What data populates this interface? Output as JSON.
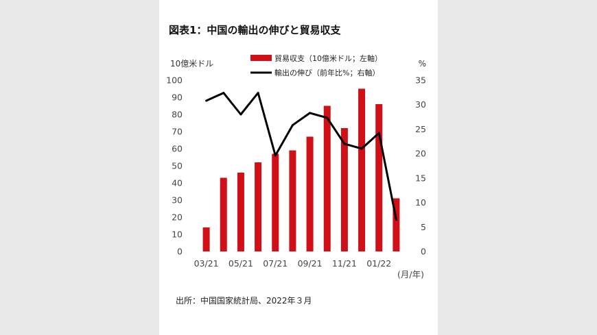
{
  "chart_data": {
    "type": "bar",
    "title": "図表1：中国の輸出の伸びと貿易収支",
    "categories": [
      "03/21",
      "04/21",
      "05/21",
      "06/21",
      "07/21",
      "08/21",
      "09/21",
      "10/21",
      "11/21",
      "12/21",
      "01/22",
      "02/22"
    ],
    "x_tick_labels": [
      "03/21",
      "05/21",
      "07/21",
      "09/21",
      "11/21",
      "01/22"
    ],
    "xlabel": "(月/年)",
    "series": [
      {
        "name": "貿易収支（10億米ドル；左軸）",
        "type": "bar",
        "axis": "left",
        "color": "#d10f16",
        "values": [
          14,
          43,
          46,
          52,
          57,
          59,
          67,
          85,
          72,
          95,
          86,
          31
        ]
      },
      {
        "name": "輸出の伸び（前年比%；右軸）",
        "type": "line",
        "axis": "right",
        "color": "#000000",
        "values": [
          30.8,
          32.4,
          28.0,
          32.4,
          19.6,
          25.8,
          28.3,
          27.3,
          22.0,
          21.0,
          24.2,
          6.5
        ]
      }
    ],
    "left_axis": {
      "unit": "10億米ドル",
      "ylim": [
        0,
        100
      ],
      "ticks": [
        "0",
        "10",
        "20",
        "30",
        "40",
        "50",
        "60",
        "70",
        "80",
        "90",
        "100"
      ]
    },
    "right_axis": {
      "unit": "%",
      "ylim": [
        0,
        35
      ],
      "ticks": [
        "0",
        "5",
        "10",
        "15",
        "20",
        "25",
        "30",
        "35"
      ]
    },
    "legend_position": "top",
    "grid": false
  },
  "source": "出所：中国国家統計局、2022年３月"
}
